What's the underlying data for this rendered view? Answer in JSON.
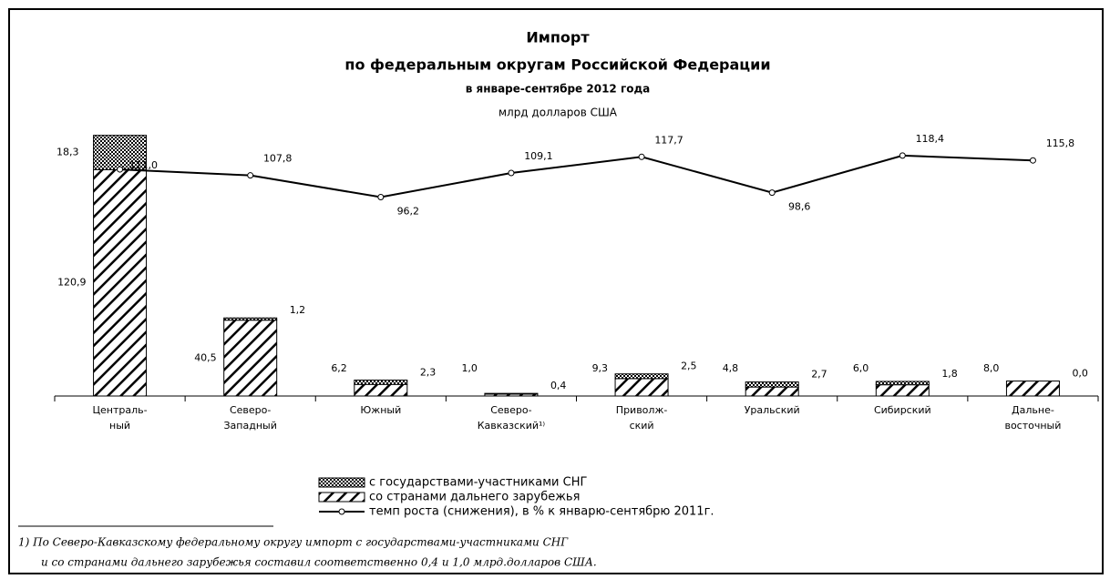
{
  "chart_data": {
    "type": "bar_line",
    "title": [
      "Импорт",
      "по федеральным округам Российской Федерации",
      "в январе-сентябре 2012 года",
      "млрд долларов США"
    ],
    "categories": [
      [
        "Централь-",
        "ный"
      ],
      [
        "Северо-",
        "Западный"
      ],
      [
        "Южный"
      ],
      [
        "Северо-",
        "Кавказский¹⁾"
      ],
      [
        "Приволж-",
        "ский"
      ],
      [
        "Уральский"
      ],
      [
        "Сибирский"
      ],
      [
        "Дальне-",
        "восточный"
      ]
    ],
    "series": [
      {
        "name": "со странами дальнего зарубежья",
        "color": "#000000",
        "pattern": "hatch",
        "values": [
          120.9,
          40.5,
          6.2,
          1.0,
          9.3,
          4.8,
          6.0,
          8.0
        ],
        "value_labels": [
          "120,9",
          "40,5",
          "6,2",
          "1,0",
          "9,3",
          "4,8",
          "6,0",
          "8,0"
        ]
      },
      {
        "name": "с государствами-участниками СНГ",
        "color": "#000000",
        "pattern": "checker",
        "values": [
          18.3,
          1.2,
          2.3,
          0.4,
          2.5,
          2.7,
          1.8,
          0.0
        ],
        "value_labels": [
          "18,3",
          "1,2",
          "2,3",
          "0,4",
          "2,5",
          "2,7",
          "1,8",
          "0,0"
        ]
      },
      {
        "name": "темп роста (снижения), в % к январю-сентябрю 2011г.",
        "color": "#000000",
        "type": "line",
        "axis": "y2",
        "values": [
          111.0,
          107.8,
          96.2,
          109.1,
          117.7,
          98.6,
          118.4,
          115.8
        ],
        "value_labels": [
          "111,0",
          "107,8",
          "96,2",
          "109,1",
          "117,7",
          "98,6",
          "118,4",
          "115,8"
        ]
      }
    ],
    "ylim": [
      0,
      140
    ],
    "y2lim": [
      -10,
      130
    ],
    "footnote": [
      "1) По Северо-Кавказскому федеральному округу импорт с государствами-участниками СНГ",
      "и со странами дальнего зарубежья составил соответственно 0,4 и 1,0 млрд.долларов США."
    ]
  }
}
